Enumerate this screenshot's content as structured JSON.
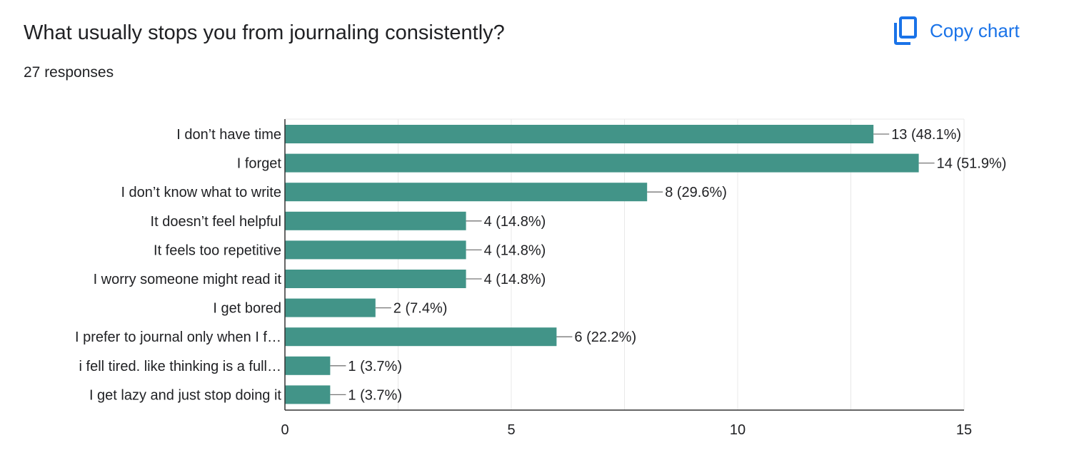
{
  "header": {
    "title": "What usually stops you from journaling consistently?",
    "responses": "27 responses",
    "copy_label": "Copy chart",
    "copy_icon": "copy-icon"
  },
  "colors": {
    "bar": "#429488",
    "accent": "#1a73e8",
    "grid": "#e8e8e8",
    "axis": "#333333",
    "text": "#202124"
  },
  "chart_data": {
    "type": "bar",
    "orientation": "horizontal",
    "title": "What usually stops you from journaling consistently?",
    "subtitle": "27 responses",
    "categories": [
      "I don’t have time",
      "I forget",
      "I don’t know what to write",
      "It doesn’t feel helpful",
      "It feels too repetitive",
      "I worry someone might read it",
      "I get bored",
      "I prefer to journal only when I f…",
      "i fell tired. like thinking is a full…",
      "I get lazy and just stop doing it"
    ],
    "values": [
      13,
      14,
      8,
      4,
      4,
      4,
      2,
      6,
      1,
      1
    ],
    "data_labels": [
      "13 (48.1%)",
      "14 (51.9%)",
      "8 (29.6%)",
      "4 (14.8%)",
      "4 (14.8%)",
      "4 (14.8%)",
      "2 (7.4%)",
      "6 (22.2%)",
      "1 (3.7%)",
      "1 (3.7%)"
    ],
    "xlim": [
      0,
      15
    ],
    "xticks": [
      0,
      5,
      10,
      15
    ],
    "grid": true,
    "legend": "none"
  }
}
